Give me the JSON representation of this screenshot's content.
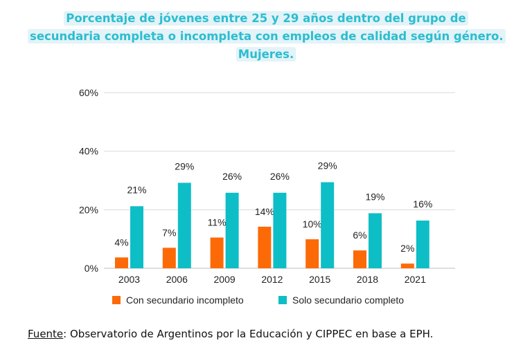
{
  "title": "Porcentaje de jóvenes entre 25 y 29 años dentro del grupo de secundaria completa o incompleta con empleos de calidad según género. Mujeres.",
  "source": {
    "label": "Fuente",
    "text": ": Observatorio de Argentinos por la Educación y CIPPEC en base a EPH."
  },
  "colors": {
    "series1": "#fc6a08",
    "series2": "#0ebec6",
    "title": "#2cbdd0",
    "grid": "#d9d9d9"
  },
  "chart_data": {
    "type": "bar",
    "categories": [
      "2003",
      "2006",
      "2009",
      "2012",
      "2015",
      "2018",
      "2021"
    ],
    "series": [
      {
        "name": "Con secundario incompleto",
        "values": [
          3.7,
          7,
          10.5,
          14.2,
          9.9,
          6.1,
          1.6
        ],
        "labels": [
          "4%",
          "7%",
          "11%",
          "14%",
          "10%",
          "6%",
          "2%"
        ]
      },
      {
        "name": "Solo secundario completo",
        "values": [
          21.2,
          29.2,
          25.8,
          25.8,
          29.4,
          18.8,
          16.3
        ],
        "labels": [
          "21%",
          "29%",
          "26%",
          "26%",
          "29%",
          "19%",
          "16%"
        ]
      }
    ],
    "yticks": [
      "0%",
      "20%",
      "40%",
      "60%"
    ],
    "ylim": [
      0,
      60
    ],
    "grid": true,
    "legend_position": "bottom"
  }
}
